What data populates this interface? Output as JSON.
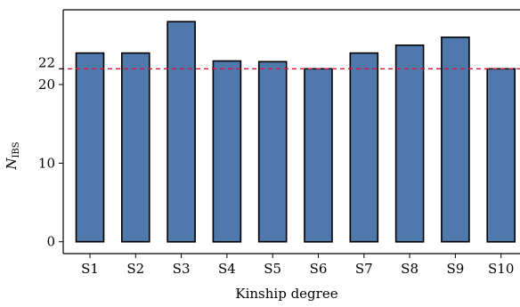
{
  "chart_data": {
    "type": "bar",
    "title": "",
    "xlabel": "Kinship degree",
    "ylabel": "N",
    "ylabel_subscript": "IBS",
    "categories": [
      "S1",
      "S2",
      "S3",
      "S4",
      "S5",
      "S6",
      "S7",
      "S8",
      "S9",
      "S10"
    ],
    "values": [
      24.0,
      24.0,
      28.0,
      23.0,
      22.9,
      22.0,
      24.0,
      25.0,
      26.0,
      22.0
    ],
    "ylim": [
      -1.5,
      29.5
    ],
    "yticks": [
      0,
      10,
      20,
      22
    ],
    "reference_line": {
      "value": 22,
      "label": "22",
      "style": "dashed",
      "color": "#dc143c"
    },
    "bar_color": "#4f79ad",
    "edge_color": "#000000",
    "grid": false,
    "legend": "none"
  }
}
